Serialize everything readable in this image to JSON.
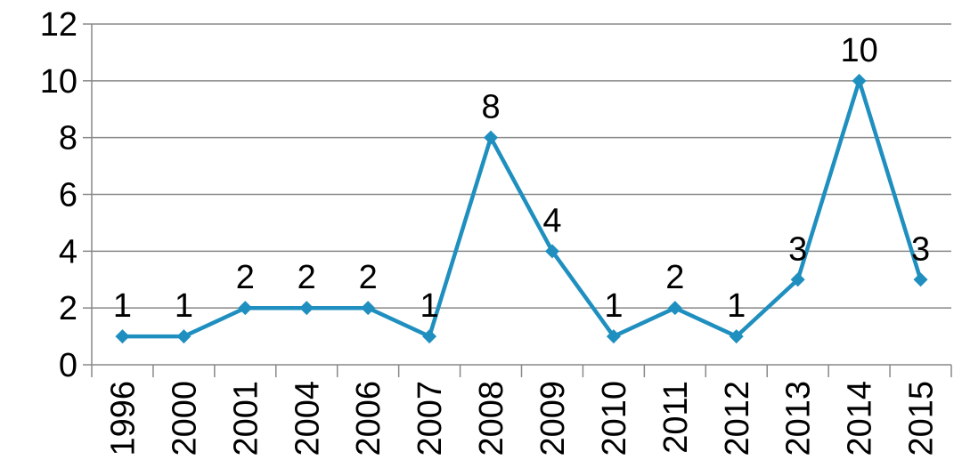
{
  "chart_data": {
    "type": "line",
    "categories": [
      "1996",
      "2000",
      "2001",
      "2004",
      "2006",
      "2007",
      "2008",
      "2009",
      "2010",
      "2011",
      "2012",
      "2013",
      "2014",
      "2015"
    ],
    "series": [
      {
        "values": [
          1,
          1,
          2,
          2,
          2,
          1,
          8,
          4,
          1,
          2,
          1,
          3,
          10,
          3
        ]
      }
    ],
    "data_labels": [
      "1",
      "1",
      "2",
      "2",
      "2",
      "1",
      "8",
      "4",
      "1",
      "2",
      "1",
      "3",
      "10",
      "3"
    ],
    "y_ticks": [
      "0",
      "2",
      "4",
      "6",
      "8",
      "10",
      "12"
    ],
    "ylim": [
      0,
      12
    ],
    "grid": true,
    "legend": "none",
    "marker": "diamond",
    "line_color": "#1f8fbf",
    "grid_color": "#888888",
    "axis_color": "#888888"
  }
}
